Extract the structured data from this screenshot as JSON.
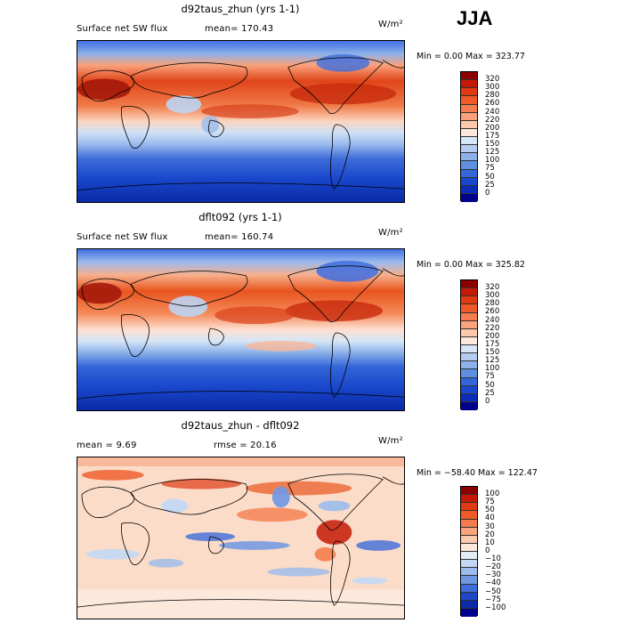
{
  "season": "JJA",
  "panels": [
    {
      "title": "d92taus_zhun (yrs 1-1)",
      "left_label": "Surface net SW flux",
      "right_label": "mean= 170.43",
      "units": "W/m²",
      "min_max": "Min =    0.00 Max = 323.77",
      "colorbar": {
        "labels": [
          "320",
          "300",
          "280",
          "260",
          "240",
          "220",
          "200",
          "175",
          "150",
          "125",
          "100",
          "75",
          "50",
          "25",
          "0"
        ],
        "colors": [
          "#8b0000",
          "#c41a05",
          "#e03a12",
          "#ef5a28",
          "#f57d4d",
          "#f9a27c",
          "#fcc9ad",
          "#fce8dc",
          "#d6e6f7",
          "#b3cdf1",
          "#8db2ea",
          "#5f8fe0",
          "#3366d8",
          "#1a48cc",
          "#0a2db8",
          "#00008b"
        ]
      }
    },
    {
      "title": "dflt092 (yrs 1-1)",
      "left_label": "Surface net SW flux",
      "right_label": "mean= 160.74",
      "units": "W/m²",
      "min_max": "Min =    0.00 Max = 325.82",
      "colorbar": {
        "labels": [
          "320",
          "300",
          "280",
          "260",
          "240",
          "220",
          "200",
          "175",
          "150",
          "125",
          "100",
          "75",
          "50",
          "25",
          "0"
        ],
        "colors": [
          "#8b0000",
          "#c41a05",
          "#e03a12",
          "#ef5a28",
          "#f57d4d",
          "#f9a27c",
          "#fcc9ad",
          "#fce8dc",
          "#d6e6f7",
          "#b3cdf1",
          "#8db2ea",
          "#5f8fe0",
          "#3366d8",
          "#1a48cc",
          "#0a2db8",
          "#00008b"
        ]
      }
    },
    {
      "title": "d92taus_zhun - dflt092",
      "left_label": "mean =    9.69",
      "right_label": "rmse =   20.16",
      "units": "W/m²",
      "min_max": "Min = −58.40 Max = 122.47",
      "colorbar": {
        "labels": [
          "100",
          "75",
          "50",
          "40",
          "30",
          "20",
          "10",
          "0",
          "−10",
          "−20",
          "−30",
          "−40",
          "−50",
          "−75",
          "−100"
        ],
        "colors": [
          "#8b0000",
          "#c41a05",
          "#e03a12",
          "#ef5a28",
          "#f57d4d",
          "#f9a27c",
          "#fcc9ad",
          "#fce8dc",
          "#e2ecf8",
          "#c3d8f4",
          "#9bbbee",
          "#6f98e4",
          "#3f6dd9",
          "#1c48c8",
          "#0a2aa8",
          "#00008b"
        ]
      }
    }
  ]
}
